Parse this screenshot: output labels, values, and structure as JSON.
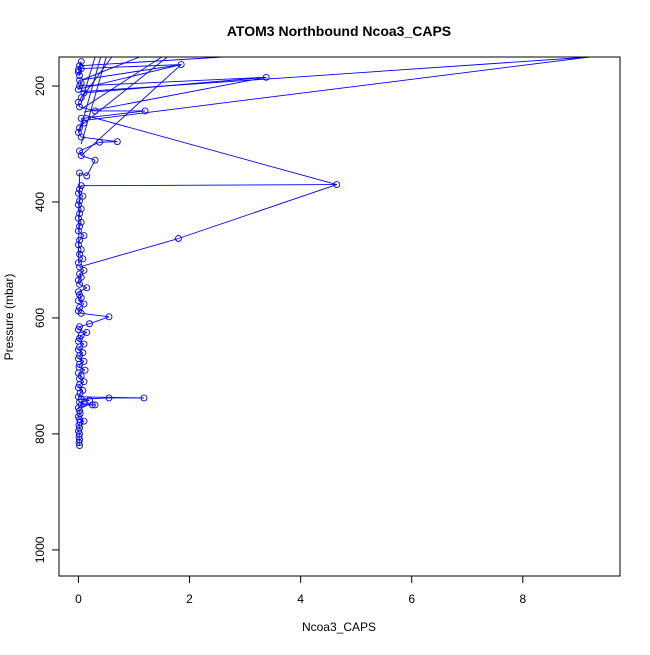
{
  "chart_data": {
    "type": "line",
    "title": "ATOM3 Northbound Ncoa3_CAPS",
    "xlabel": "Ncoa3_CAPS",
    "ylabel": "Pressure (mbar)",
    "xlim": [
      -0.35,
      9.75
    ],
    "ylim": [
      1045,
      150
    ],
    "y_reversed": true,
    "x_ticks": [
      0,
      2,
      4,
      6,
      8
    ],
    "y_ticks": [
      200,
      400,
      600,
      800,
      1000
    ],
    "grid": false,
    "colors": {
      "series": "#0000ff",
      "axis": "#000000"
    },
    "series": [
      {
        "marker": "open-circle",
        "points": [
          [
            0.02,
            820
          ],
          [
            0.01,
            815
          ],
          [
            0.02,
            810
          ],
          [
            0.01,
            805
          ],
          [
            0.02,
            800
          ],
          [
            0.0,
            795
          ],
          [
            0.02,
            790
          ],
          [
            0.01,
            785
          ],
          [
            0.03,
            780
          ],
          [
            0.1,
            778
          ],
          [
            0.02,
            775
          ],
          [
            0.0,
            770
          ],
          [
            0.03,
            765
          ],
          [
            0.02,
            760
          ],
          [
            0.0,
            755
          ],
          [
            0.05,
            750
          ],
          [
            0.25,
            750
          ],
          [
            0.3,
            750
          ],
          [
            0.1,
            748
          ],
          [
            0.02,
            745
          ],
          [
            0.2,
            742
          ],
          [
            0.05,
            740
          ],
          [
            0.55,
            738
          ],
          [
            1.18,
            738
          ],
          [
            0.0,
            736
          ],
          [
            0.03,
            730
          ],
          [
            0.08,
            725
          ],
          [
            0.0,
            720
          ],
          [
            0.02,
            715
          ],
          [
            0.1,
            710
          ],
          [
            0.02,
            705
          ],
          [
            0.05,
            700
          ],
          [
            0.0,
            695
          ],
          [
            0.12,
            690
          ],
          [
            0.01,
            685
          ],
          [
            0.02,
            680
          ],
          [
            0.1,
            675
          ],
          [
            0.0,
            670
          ],
          [
            0.02,
            665
          ],
          [
            0.08,
            660
          ],
          [
            0.0,
            655
          ],
          [
            0.02,
            650
          ],
          [
            0.1,
            645
          ],
          [
            0.0,
            640
          ],
          [
            0.02,
            635
          ],
          [
            0.05,
            630
          ],
          [
            0.15,
            625
          ],
          [
            0.0,
            620
          ],
          [
            0.02,
            615
          ],
          [
            0.2,
            610
          ],
          [
            0.55,
            598
          ],
          [
            0.05,
            592
          ],
          [
            0.0,
            588
          ],
          [
            0.02,
            582
          ],
          [
            0.1,
            576
          ],
          [
            0.0,
            570
          ],
          [
            0.05,
            565
          ],
          [
            0.02,
            560
          ],
          [
            0.0,
            555
          ],
          [
            0.15,
            548
          ],
          [
            0.02,
            542
          ],
          [
            0.0,
            535
          ],
          [
            0.05,
            530
          ],
          [
            0.02,
            524
          ],
          [
            0.1,
            518
          ],
          [
            0.02,
            512
          ],
          [
            1.8,
            463
          ],
          [
            4.65,
            370
          ],
          [
            0.05,
            372
          ],
          [
            0.02,
            378
          ],
          [
            0.0,
            385
          ],
          [
            0.08,
            390
          ],
          [
            0.02,
            398
          ],
          [
            0.0,
            405
          ],
          [
            0.05,
            412
          ],
          [
            0.02,
            420
          ],
          [
            0.0,
            428
          ],
          [
            0.05,
            435
          ],
          [
            0.02,
            442
          ],
          [
            0.0,
            450
          ],
          [
            0.1,
            458
          ],
          [
            0.02,
            466
          ],
          [
            0.0,
            474
          ],
          [
            0.05,
            482
          ],
          [
            0.02,
            490
          ],
          [
            0.08,
            498
          ],
          [
            0.0,
            505
          ],
          [
            0.02,
            350
          ],
          [
            0.15,
            355
          ],
          [
            0.3,
            328
          ],
          [
            0.05,
            320
          ],
          [
            0.02,
            312
          ],
          [
            0.38,
            297
          ],
          [
            0.7,
            296
          ],
          [
            0.05,
            288
          ],
          [
            0.0,
            280
          ],
          [
            0.02,
            272
          ],
          [
            0.1,
            264
          ],
          [
            0.05,
            256
          ],
          [
            1.2,
            243
          ],
          [
            0.3,
            243
          ],
          [
            0.02,
            236
          ],
          [
            0.0,
            228
          ],
          [
            0.05,
            220
          ],
          [
            0.1,
            212
          ],
          [
            3.38,
            185
          ],
          [
            0.02,
            200
          ],
          [
            0.0,
            206
          ],
          [
            0.05,
            195
          ],
          [
            0.02,
            190
          ],
          [
            1.85,
            163
          ],
          [
            0.05,
            170
          ],
          [
            0.0,
            176
          ],
          [
            0.02,
            182
          ],
          [
            0.05,
            158
          ],
          [
            0.02,
            165
          ],
          [
            0.0,
            172
          ]
        ]
      }
    ],
    "extra_segments": [
      [
        [
          0.05,
          260
        ],
        [
          9.2,
          150
        ]
      ],
      [
        [
          0.02,
          210
        ],
        [
          9.2,
          150
        ]
      ],
      [
        [
          0.1,
          245
        ],
        [
          3.38,
          185
        ]
      ],
      [
        [
          0.05,
          320
        ],
        [
          1.85,
          163
        ]
      ],
      [
        [
          0.02,
          205
        ],
        [
          1.85,
          163
        ]
      ],
      [
        [
          0.02,
          280
        ],
        [
          0.4,
          150
        ]
      ],
      [
        [
          0.05,
          300
        ],
        [
          0.5,
          150
        ]
      ],
      [
        [
          0.05,
          230
        ],
        [
          0.3,
          150
        ]
      ],
      [
        [
          0.02,
          270
        ],
        [
          1.6,
          150
        ]
      ],
      [
        [
          0.1,
          250
        ],
        [
          4.65,
          370
        ]
      ],
      [
        [
          0.1,
          215
        ],
        [
          0.6,
          150
        ]
      ],
      [
        [
          0.05,
          240
        ],
        [
          1.5,
          150
        ]
      ],
      [
        [
          0.05,
          165
        ],
        [
          2.6,
          150
        ]
      ],
      [
        [
          0.05,
          190
        ],
        [
          1.1,
          150
        ]
      ]
    ]
  }
}
